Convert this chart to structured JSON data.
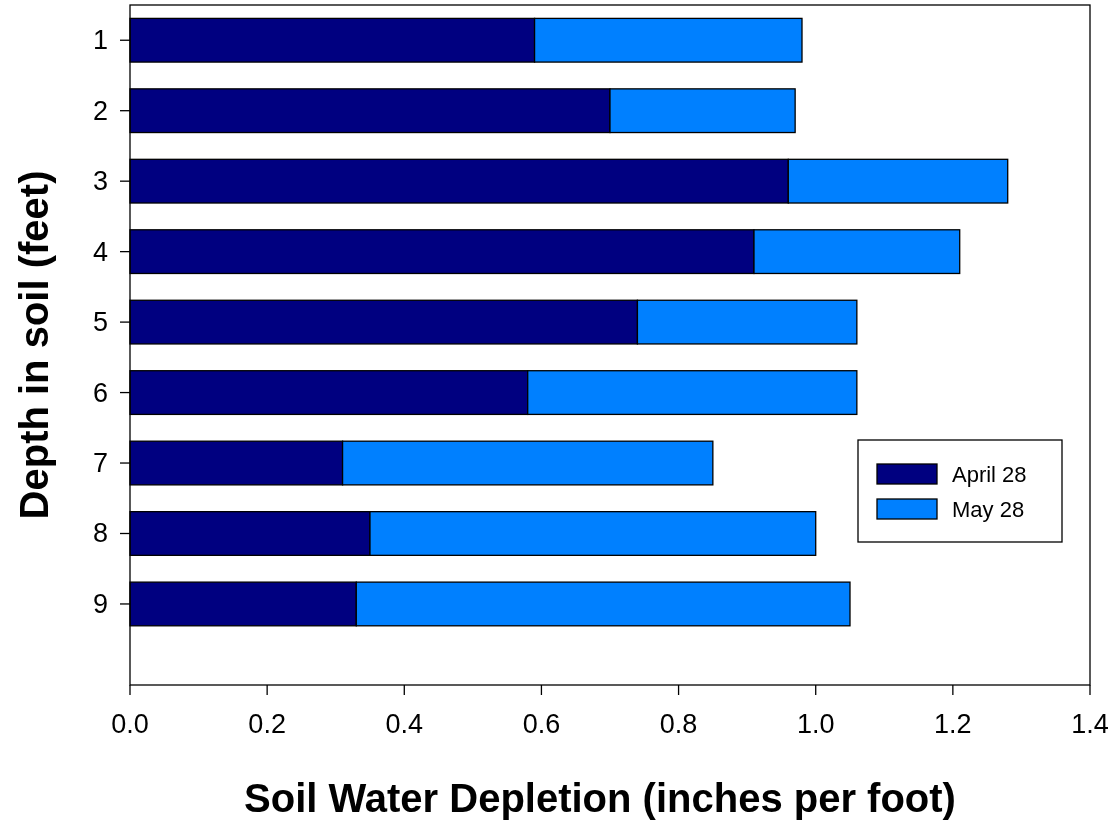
{
  "chart_data": {
    "type": "bar",
    "orientation": "horizontal",
    "stacked": true,
    "xlabel": "Soil Water Depletion (inches per foot)",
    "ylabel": "Depth in soil (feet)",
    "categories": [
      "1",
      "2",
      "3",
      "4",
      "5",
      "6",
      "7",
      "8",
      "9"
    ],
    "series": [
      {
        "name": "April 28",
        "color": "#000080",
        "values": [
          0.59,
          0.7,
          0.96,
          0.91,
          0.74,
          0.58,
          0.31,
          0.35,
          0.33
        ]
      },
      {
        "name": "May 28",
        "color": "#0080ff",
        "values": [
          0.39,
          0.27,
          0.32,
          0.3,
          0.32,
          0.48,
          0.54,
          0.65,
          0.72
        ]
      }
    ],
    "xlim": [
      0,
      1.4
    ],
    "xticks": [
      {
        "value": 0,
        "label": "0.0"
      },
      {
        "value": 0.2,
        "label": "0.2"
      },
      {
        "value": 0.4,
        "label": "0.4"
      },
      {
        "value": 0.6,
        "label": "0.6"
      },
      {
        "value": 0.8,
        "label": "0.8"
      },
      {
        "value": 1,
        "label": "1.0"
      },
      {
        "value": 1.2,
        "label": "1.2"
      },
      {
        "value": 1.4,
        "label": "1.4"
      }
    ],
    "legend": "right",
    "grid": false
  }
}
